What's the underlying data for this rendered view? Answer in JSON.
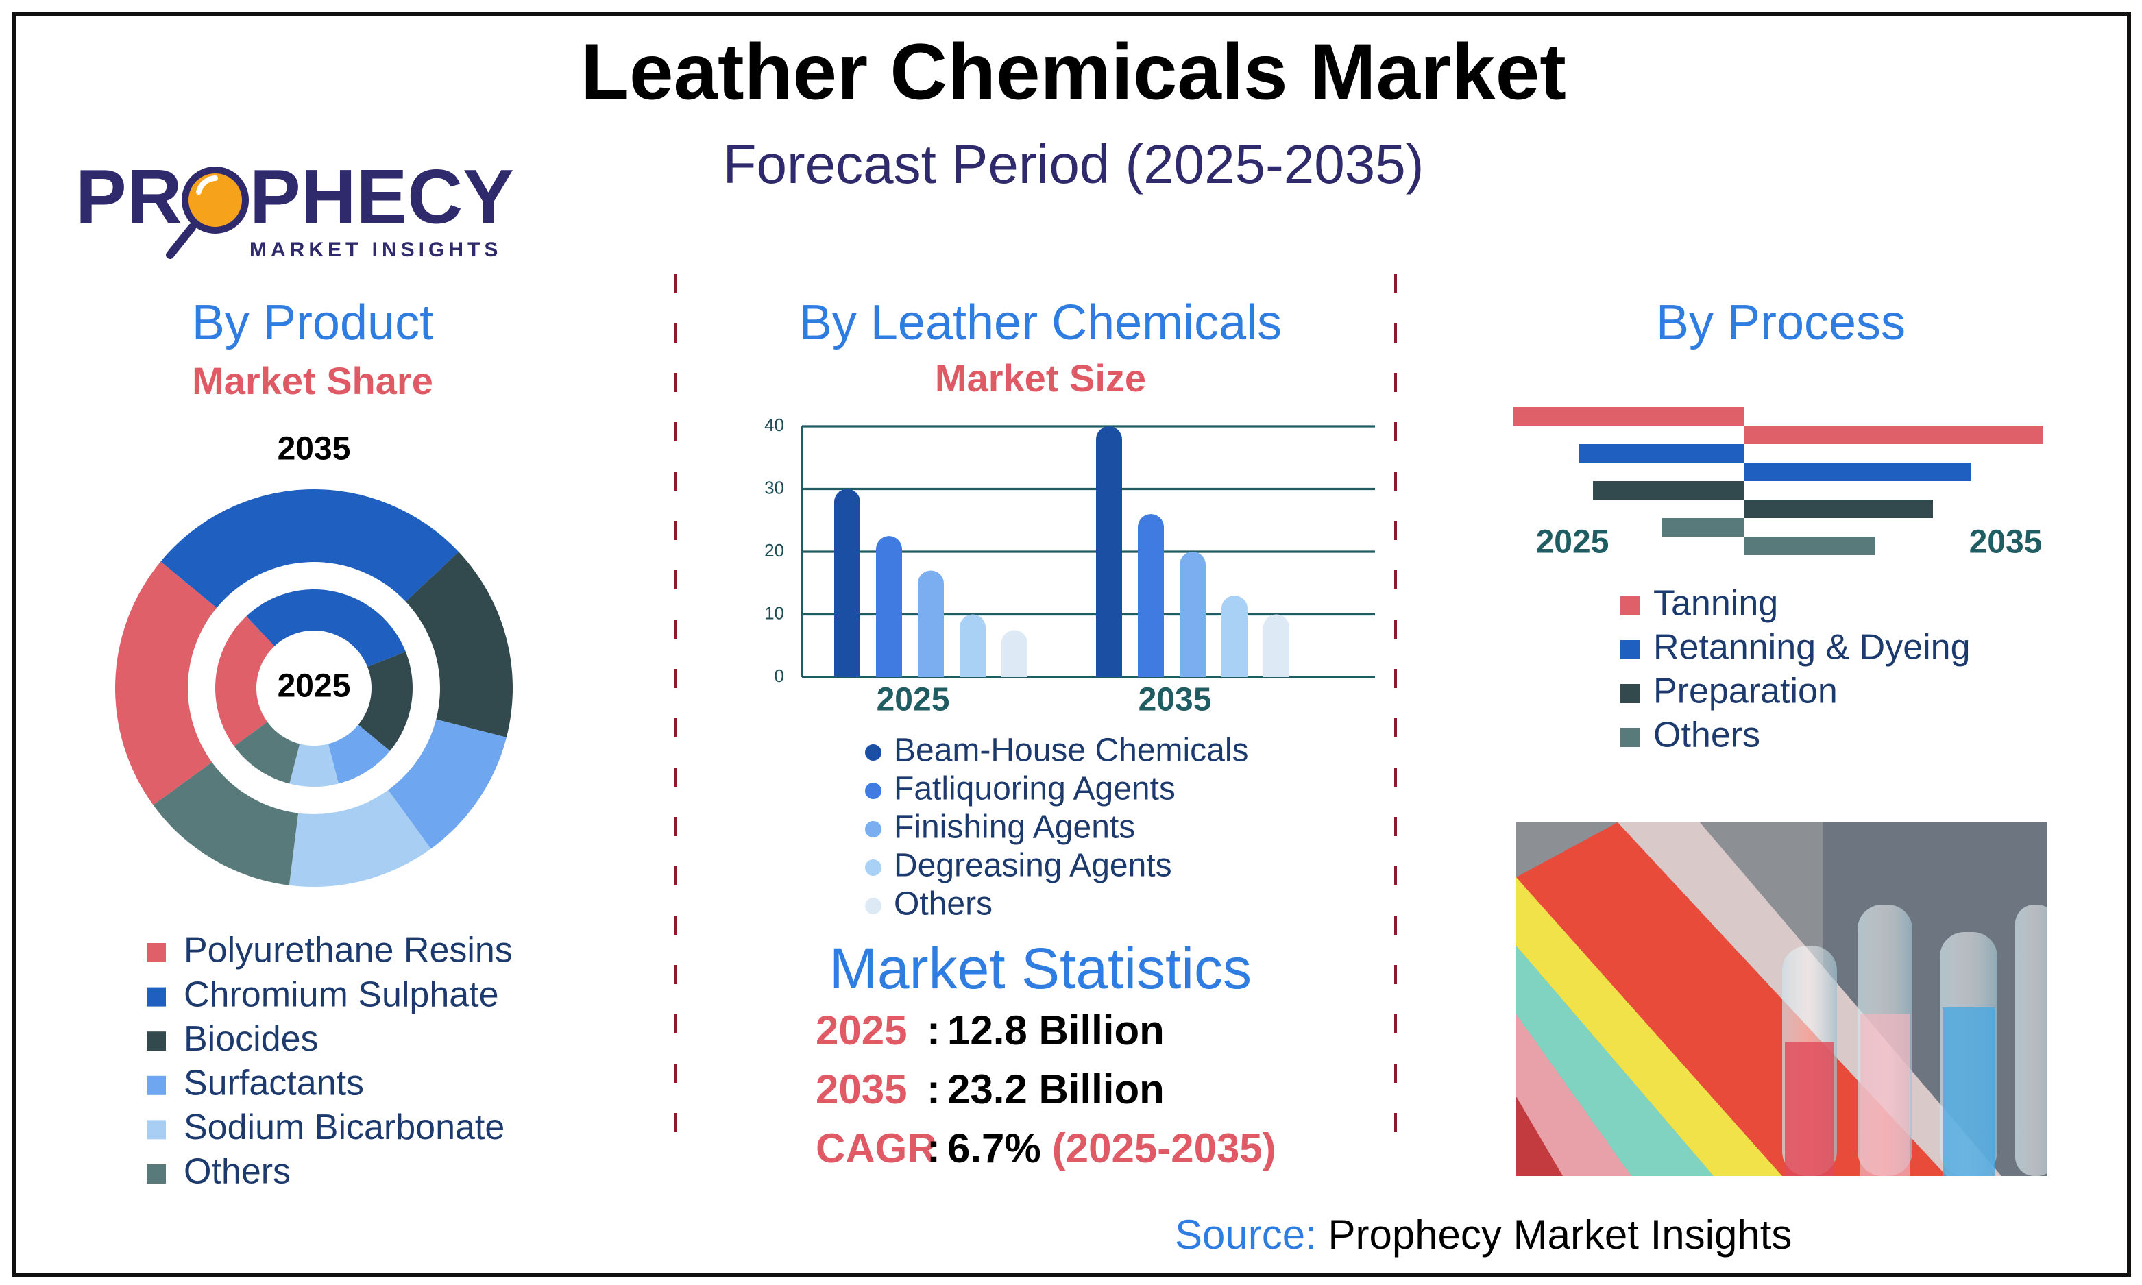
{
  "title": "Leather Chemicals Market",
  "subtitle": "Forecast Period (2025-2035)",
  "logo": {
    "name_start": "PR",
    "name_end": "PHECY",
    "tagline": "MARKET INSIGHTS"
  },
  "chart_data": [
    {
      "type": "pie",
      "title": "By Product",
      "subtitle": "Market Share",
      "categories": [
        "Polyurethane Resins",
        "Chromium Sulphate",
        "Biocides",
        "Surfactants",
        "Sodium Bicarbonate",
        "Others"
      ],
      "colors": [
        "#e0606a",
        "#1f5fbf",
        "#324a4e",
        "#6ea6ef",
        "#a8cff3",
        "#587a7a"
      ],
      "series": [
        {
          "name": "2025",
          "values": [
            23,
            31,
            17,
            10,
            8,
            11
          ]
        },
        {
          "name": "2035",
          "values": [
            21,
            27,
            16,
            11,
            12,
            13
          ]
        }
      ]
    },
    {
      "type": "bar",
      "title": "By Leather Chemicals",
      "subtitle": "Market Size",
      "categories": [
        "2025",
        "2035"
      ],
      "series": [
        {
          "name": "Beam-House Chemicals",
          "color": "#1a4fa3",
          "values": [
            30,
            40
          ]
        },
        {
          "name": "Fatliquoring Agents",
          "color": "#3f7be0",
          "values": [
            22.5,
            26
          ]
        },
        {
          "name": "Finishing Agents",
          "color": "#7aaef0",
          "values": [
            17,
            20
          ]
        },
        {
          "name": "Degreasing Agents",
          "color": "#a9d0f5",
          "values": [
            10,
            13
          ]
        },
        {
          "name": "Others",
          "color": "#dde9f5",
          "values": [
            7.5,
            10
          ]
        }
      ],
      "ylim": [
        0,
        40
      ],
      "yticks": [
        0,
        10,
        20,
        30,
        40
      ],
      "grid": true
    },
    {
      "type": "diverging-bar",
      "title": "By Process",
      "categories": [
        "Tanning",
        "Retanning & Dyeing",
        "Preparation",
        "Others"
      ],
      "colors": [
        "#e0606a",
        "#1f5fbf",
        "#324a4e",
        "#587a7a"
      ],
      "series": [
        {
          "name": "2025",
          "values": [
            8.4,
            6.0,
            5.5,
            3.0
          ]
        },
        {
          "name": "2035",
          "values": [
            10.9,
            8.3,
            6.9,
            4.8
          ]
        }
      ]
    }
  ],
  "statistics": {
    "title": "Market Statistics",
    "rows": [
      {
        "label": "2025",
        "separator": ":",
        "value": "12.8 Billion"
      },
      {
        "label": "2035",
        "separator": ":",
        "value": "23.2 Billion"
      },
      {
        "label": "CAGR",
        "separator": ":",
        "value": "6.7%",
        "note": "(2025-2035)"
      }
    ]
  },
  "source": {
    "label": "Source:",
    "text": "Prophecy Market Insights"
  }
}
